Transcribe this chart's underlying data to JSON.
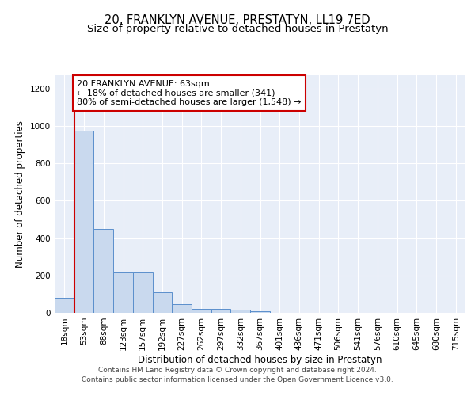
{
  "title_line1": "20, FRANKLYN AVENUE, PRESTATYN, LL19 7ED",
  "title_line2": "Size of property relative to detached houses in Prestatyn",
  "xlabel": "Distribution of detached houses by size in Prestatyn",
  "ylabel": "Number of detached properties",
  "bin_labels": [
    "18sqm",
    "53sqm",
    "88sqm",
    "123sqm",
    "157sqm",
    "192sqm",
    "227sqm",
    "262sqm",
    "297sqm",
    "332sqm",
    "367sqm",
    "401sqm",
    "436sqm",
    "471sqm",
    "506sqm",
    "541sqm",
    "576sqm",
    "610sqm",
    "645sqm",
    "680sqm",
    "715sqm"
  ],
  "bar_values": [
    80,
    975,
    450,
    215,
    215,
    110,
    45,
    22,
    22,
    15,
    8,
    0,
    0,
    0,
    0,
    0,
    0,
    0,
    0,
    0,
    0
  ],
  "bar_color": "#c9d9ee",
  "bar_edge_color": "#5b8fcc",
  "annotation_line1": "20 FRANKLYN AVENUE: 63sqm",
  "annotation_line2": "← 18% of detached houses are smaller (341)",
  "annotation_line3": "80% of semi-detached houses are larger (1,548) →",
  "annotation_box_color": "#ffffff",
  "annotation_box_edge": "#cc0000",
  "vline_color": "#cc0000",
  "vline_x_index": 1,
  "ylim": [
    0,
    1270
  ],
  "yticks": [
    0,
    200,
    400,
    600,
    800,
    1000,
    1200
  ],
  "footer_line1": "Contains HM Land Registry data © Crown copyright and database right 2024.",
  "footer_line2": "Contains public sector information licensed under the Open Government Licence v3.0.",
  "plot_background_color": "#e8eef8",
  "grid_color": "#ffffff",
  "title_fontsize": 10.5,
  "subtitle_fontsize": 9.5,
  "axis_label_fontsize": 8.5,
  "tick_fontsize": 7.5,
  "annotation_fontsize": 8,
  "footer_fontsize": 6.5
}
